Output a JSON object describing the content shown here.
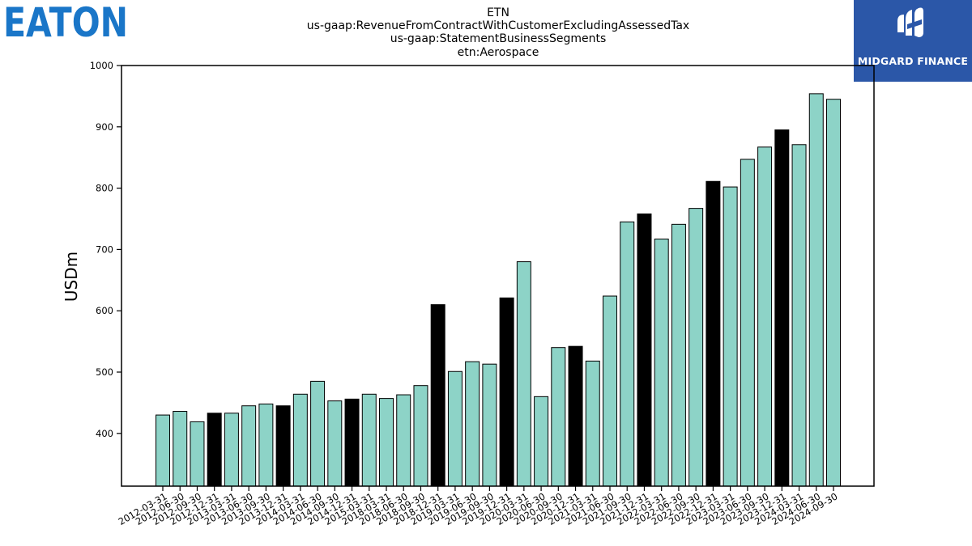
{
  "branding": {
    "company_logo_text": "EATON",
    "publisher_logo_text": "MIDGARD FINANCE"
  },
  "colors": {
    "bar_default": "#8dd3c7",
    "bar_q4": "#000000",
    "eaton_blue": "#1a76c8",
    "midgard_blue": "#2b57a8"
  },
  "chart_data": {
    "type": "bar",
    "title_lines": [
      "ETN",
      "us-gaap:RevenueFromContractWithCustomerExcludingAssessedTax",
      "us-gaap:StatementBusinessSegments",
      "etn:Aerospace"
    ],
    "xlabel": "",
    "ylabel": "USDm",
    "ylim": [
      314,
      1000
    ],
    "yticks": [
      400,
      500,
      600,
      700,
      800,
      900,
      1000
    ],
    "grid": false,
    "categories": [
      "2012-03-31",
      "2012-06-30",
      "2012-09-30",
      "2012-12-31",
      "2013-03-31",
      "2013-06-30",
      "2013-09-30",
      "2013-12-31",
      "2014-03-31",
      "2014-06-30",
      "2014-09-30",
      "2014-12-31",
      "2015-03-31",
      "2018-03-31",
      "2018-06-30",
      "2018-09-30",
      "2018-12-31",
      "2019-03-31",
      "2019-06-30",
      "2019-09-30",
      "2019-12-31",
      "2020-03-31",
      "2020-06-30",
      "2020-09-30",
      "2020-12-31",
      "2021-03-31",
      "2021-06-30",
      "2021-09-30",
      "2021-12-31",
      "2022-03-31",
      "2022-06-30",
      "2022-09-30",
      "2022-12-31",
      "2023-03-31",
      "2023-06-30",
      "2023-09-30",
      "2023-12-31",
      "2024-03-31",
      "2024-06-30",
      "2024-09-30"
    ],
    "values": [
      430,
      436,
      419,
      433,
      433,
      445,
      448,
      445,
      464,
      485,
      453,
      456,
      464,
      457,
      463,
      478,
      610,
      501,
      517,
      513,
      621,
      680,
      460,
      540,
      542,
      518,
      624,
      745,
      758,
      717,
      741,
      767,
      811,
      802,
      847,
      867,
      895,
      871,
      954,
      945
    ],
    "highlight_q4": [
      false,
      false,
      false,
      true,
      false,
      false,
      false,
      true,
      false,
      false,
      false,
      true,
      false,
      false,
      false,
      false,
      true,
      false,
      false,
      false,
      true,
      false,
      false,
      false,
      true,
      false,
      false,
      false,
      true,
      false,
      false,
      false,
      true,
      false,
      false,
      false,
      true,
      false,
      false,
      false
    ]
  }
}
